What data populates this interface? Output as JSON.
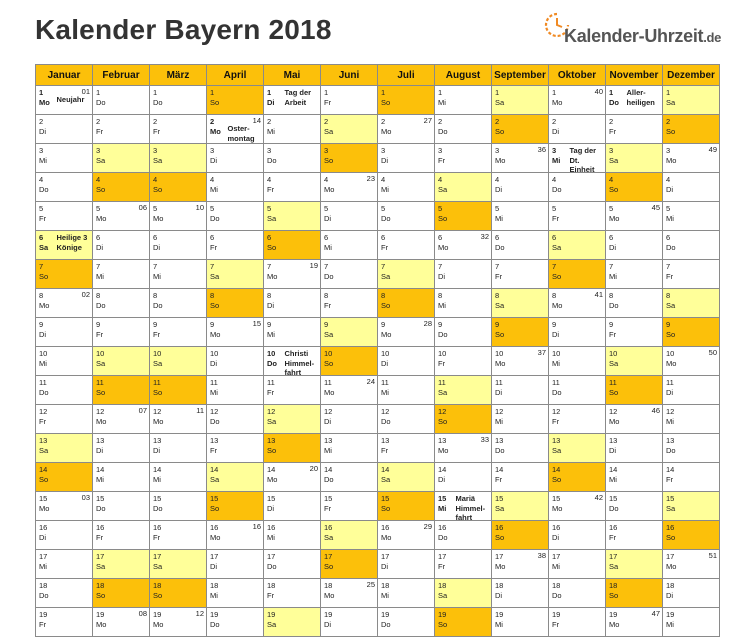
{
  "title": "Kalender Bayern 2018",
  "logo": {
    "text": "Kalender-Uhrzeit",
    "tld": ".de"
  },
  "colors": {
    "header": "#fcc00a",
    "saturday": "#ffff99",
    "sunday": "#fcc00a"
  },
  "months": [
    "Januar",
    "Februar",
    "März",
    "April",
    "Mai",
    "Juni",
    "Juli",
    "August",
    "September",
    "Oktober",
    "November",
    "Dezember"
  ],
  "rows": [
    [
      {
        "d": "1",
        "w": "Mo",
        "wk": "01",
        "ev": "Neujahr",
        "hol": true
      },
      {
        "d": "1",
        "w": "Do"
      },
      {
        "d": "1",
        "w": "Do"
      },
      {
        "d": "1",
        "w": "So",
        "t": "sun"
      },
      {
        "d": "1",
        "w": "Di",
        "ev": "Tag der Arbeit",
        "hol": true
      },
      {
        "d": "1",
        "w": "Fr"
      },
      {
        "d": "1",
        "w": "So",
        "t": "sun"
      },
      {
        "d": "1",
        "w": "Mi"
      },
      {
        "d": "1",
        "w": "Sa",
        "t": "sat"
      },
      {
        "d": "1",
        "w": "Mo",
        "wk": "40"
      },
      {
        "d": "1",
        "w": "Do",
        "ev": "Aller-heiligen",
        "hol": true
      },
      {
        "d": "1",
        "w": "Sa",
        "t": "sat"
      }
    ],
    [
      {
        "d": "2",
        "w": "Di"
      },
      {
        "d": "2",
        "w": "Fr"
      },
      {
        "d": "2",
        "w": "Fr"
      },
      {
        "d": "2",
        "w": "Mo",
        "wk": "14",
        "ev": "Oster-montag",
        "hol": true
      },
      {
        "d": "2",
        "w": "Mi"
      },
      {
        "d": "2",
        "w": "Sa",
        "t": "sat"
      },
      {
        "d": "2",
        "w": "Mo",
        "wk": "27"
      },
      {
        "d": "2",
        "w": "Do"
      },
      {
        "d": "2",
        "w": "So",
        "t": "sun"
      },
      {
        "d": "2",
        "w": "Di"
      },
      {
        "d": "2",
        "w": "Fr"
      },
      {
        "d": "2",
        "w": "So",
        "t": "sun"
      }
    ],
    [
      {
        "d": "3",
        "w": "Mi"
      },
      {
        "d": "3",
        "w": "Sa",
        "t": "sat"
      },
      {
        "d": "3",
        "w": "Sa",
        "t": "sat"
      },
      {
        "d": "3",
        "w": "Di"
      },
      {
        "d": "3",
        "w": "Do"
      },
      {
        "d": "3",
        "w": "So",
        "t": "sun"
      },
      {
        "d": "3",
        "w": "Di"
      },
      {
        "d": "3",
        "w": "Fr"
      },
      {
        "d": "3",
        "w": "Mo",
        "wk": "36"
      },
      {
        "d": "3",
        "w": "Mi",
        "ev": "Tag der Dt. Einheit",
        "hol": true
      },
      {
        "d": "3",
        "w": "Sa",
        "t": "sat"
      },
      {
        "d": "3",
        "w": "Mo",
        "wk": "49"
      }
    ],
    [
      {
        "d": "4",
        "w": "Do"
      },
      {
        "d": "4",
        "w": "So",
        "t": "sun"
      },
      {
        "d": "4",
        "w": "So",
        "t": "sun"
      },
      {
        "d": "4",
        "w": "Mi"
      },
      {
        "d": "4",
        "w": "Fr"
      },
      {
        "d": "4",
        "w": "Mo",
        "wk": "23"
      },
      {
        "d": "4",
        "w": "Mi"
      },
      {
        "d": "4",
        "w": "Sa",
        "t": "sat"
      },
      {
        "d": "4",
        "w": "Di"
      },
      {
        "d": "4",
        "w": "Do"
      },
      {
        "d": "4",
        "w": "So",
        "t": "sun"
      },
      {
        "d": "4",
        "w": "Di"
      }
    ],
    [
      {
        "d": "5",
        "w": "Fr"
      },
      {
        "d": "5",
        "w": "Mo",
        "wk": "06"
      },
      {
        "d": "5",
        "w": "Mo",
        "wk": "10"
      },
      {
        "d": "5",
        "w": "Do"
      },
      {
        "d": "5",
        "w": "Sa",
        "t": "sat"
      },
      {
        "d": "5",
        "w": "Di"
      },
      {
        "d": "5",
        "w": "Do"
      },
      {
        "d": "5",
        "w": "So",
        "t": "sun"
      },
      {
        "d": "5",
        "w": "Mi"
      },
      {
        "d": "5",
        "w": "Fr"
      },
      {
        "d": "5",
        "w": "Mo",
        "wk": "45"
      },
      {
        "d": "5",
        "w": "Mi"
      }
    ],
    [
      {
        "d": "6",
        "w": "Sa",
        "t": "sat",
        "ev": "Heilige 3 Könige",
        "hol": true
      },
      {
        "d": "6",
        "w": "Di"
      },
      {
        "d": "6",
        "w": "Di"
      },
      {
        "d": "6",
        "w": "Fr"
      },
      {
        "d": "6",
        "w": "So",
        "t": "sun"
      },
      {
        "d": "6",
        "w": "Mi"
      },
      {
        "d": "6",
        "w": "Fr"
      },
      {
        "d": "6",
        "w": "Mo",
        "wk": "32"
      },
      {
        "d": "6",
        "w": "Do"
      },
      {
        "d": "6",
        "w": "Sa",
        "t": "sat"
      },
      {
        "d": "6",
        "w": "Di"
      },
      {
        "d": "6",
        "w": "Do"
      }
    ],
    [
      {
        "d": "7",
        "w": "So",
        "t": "sun"
      },
      {
        "d": "7",
        "w": "Mi"
      },
      {
        "d": "7",
        "w": "Mi"
      },
      {
        "d": "7",
        "w": "Sa",
        "t": "sat"
      },
      {
        "d": "7",
        "w": "Mo",
        "wk": "19"
      },
      {
        "d": "7",
        "w": "Do"
      },
      {
        "d": "7",
        "w": "Sa",
        "t": "sat"
      },
      {
        "d": "7",
        "w": "Di"
      },
      {
        "d": "7",
        "w": "Fr"
      },
      {
        "d": "7",
        "w": "So",
        "t": "sun"
      },
      {
        "d": "7",
        "w": "Mi"
      },
      {
        "d": "7",
        "w": "Fr"
      }
    ],
    [
      {
        "d": "8",
        "w": "Mo",
        "wk": "02"
      },
      {
        "d": "8",
        "w": "Do"
      },
      {
        "d": "8",
        "w": "Do"
      },
      {
        "d": "8",
        "w": "So",
        "t": "sun"
      },
      {
        "d": "8",
        "w": "Di"
      },
      {
        "d": "8",
        "w": "Fr"
      },
      {
        "d": "8",
        "w": "So",
        "t": "sun"
      },
      {
        "d": "8",
        "w": "Mi"
      },
      {
        "d": "8",
        "w": "Sa",
        "t": "sat"
      },
      {
        "d": "8",
        "w": "Mo",
        "wk": "41"
      },
      {
        "d": "8",
        "w": "Do"
      },
      {
        "d": "8",
        "w": "Sa",
        "t": "sat"
      }
    ],
    [
      {
        "d": "9",
        "w": "Di"
      },
      {
        "d": "9",
        "w": "Fr"
      },
      {
        "d": "9",
        "w": "Fr"
      },
      {
        "d": "9",
        "w": "Mo",
        "wk": "15"
      },
      {
        "d": "9",
        "w": "Mi"
      },
      {
        "d": "9",
        "w": "Sa",
        "t": "sat"
      },
      {
        "d": "9",
        "w": "Mo",
        "wk": "28"
      },
      {
        "d": "9",
        "w": "Do"
      },
      {
        "d": "9",
        "w": "So",
        "t": "sun"
      },
      {
        "d": "9",
        "w": "Di"
      },
      {
        "d": "9",
        "w": "Fr"
      },
      {
        "d": "9",
        "w": "So",
        "t": "sun"
      }
    ],
    [
      {
        "d": "10",
        "w": "Mi"
      },
      {
        "d": "10",
        "w": "Sa",
        "t": "sat"
      },
      {
        "d": "10",
        "w": "Sa",
        "t": "sat"
      },
      {
        "d": "10",
        "w": "Di"
      },
      {
        "d": "10",
        "w": "Do",
        "ev": "Christi Himmel-fahrt",
        "hol": true
      },
      {
        "d": "10",
        "w": "So",
        "t": "sun"
      },
      {
        "d": "10",
        "w": "Di"
      },
      {
        "d": "10",
        "w": "Fr"
      },
      {
        "d": "10",
        "w": "Mo",
        "wk": "37"
      },
      {
        "d": "10",
        "w": "Mi"
      },
      {
        "d": "10",
        "w": "Sa",
        "t": "sat"
      },
      {
        "d": "10",
        "w": "Mo",
        "wk": "50"
      }
    ],
    [
      {
        "d": "11",
        "w": "Do"
      },
      {
        "d": "11",
        "w": "So",
        "t": "sun"
      },
      {
        "d": "11",
        "w": "So",
        "t": "sun"
      },
      {
        "d": "11",
        "w": "Mi"
      },
      {
        "d": "11",
        "w": "Fr"
      },
      {
        "d": "11",
        "w": "Mo",
        "wk": "24"
      },
      {
        "d": "11",
        "w": "Mi"
      },
      {
        "d": "11",
        "w": "Sa",
        "t": "sat"
      },
      {
        "d": "11",
        "w": "Di"
      },
      {
        "d": "11",
        "w": "Do"
      },
      {
        "d": "11",
        "w": "So",
        "t": "sun"
      },
      {
        "d": "11",
        "w": "Di"
      }
    ],
    [
      {
        "d": "12",
        "w": "Fr"
      },
      {
        "d": "12",
        "w": "Mo",
        "wk": "07"
      },
      {
        "d": "12",
        "w": "Mo",
        "wk": "11"
      },
      {
        "d": "12",
        "w": "Do"
      },
      {
        "d": "12",
        "w": "Sa",
        "t": "sat"
      },
      {
        "d": "12",
        "w": "Di"
      },
      {
        "d": "12",
        "w": "Do"
      },
      {
        "d": "12",
        "w": "So",
        "t": "sun"
      },
      {
        "d": "12",
        "w": "Mi"
      },
      {
        "d": "12",
        "w": "Fr"
      },
      {
        "d": "12",
        "w": "Mo",
        "wk": "46"
      },
      {
        "d": "12",
        "w": "Mi"
      }
    ],
    [
      {
        "d": "13",
        "w": "Sa",
        "t": "sat"
      },
      {
        "d": "13",
        "w": "Di"
      },
      {
        "d": "13",
        "w": "Di"
      },
      {
        "d": "13",
        "w": "Fr"
      },
      {
        "d": "13",
        "w": "So",
        "t": "sun"
      },
      {
        "d": "13",
        "w": "Mi"
      },
      {
        "d": "13",
        "w": "Fr"
      },
      {
        "d": "13",
        "w": "Mo",
        "wk": "33"
      },
      {
        "d": "13",
        "w": "Do"
      },
      {
        "d": "13",
        "w": "Sa",
        "t": "sat"
      },
      {
        "d": "13",
        "w": "Di"
      },
      {
        "d": "13",
        "w": "Do"
      }
    ],
    [
      {
        "d": "14",
        "w": "So",
        "t": "sun"
      },
      {
        "d": "14",
        "w": "Mi"
      },
      {
        "d": "14",
        "w": "Mi"
      },
      {
        "d": "14",
        "w": "Sa",
        "t": "sat"
      },
      {
        "d": "14",
        "w": "Mo",
        "wk": "20"
      },
      {
        "d": "14",
        "w": "Do"
      },
      {
        "d": "14",
        "w": "Sa",
        "t": "sat"
      },
      {
        "d": "14",
        "w": "Di"
      },
      {
        "d": "14",
        "w": "Fr"
      },
      {
        "d": "14",
        "w": "So",
        "t": "sun"
      },
      {
        "d": "14",
        "w": "Mi"
      },
      {
        "d": "14",
        "w": "Fr"
      }
    ],
    [
      {
        "d": "15",
        "w": "Mo",
        "wk": "03"
      },
      {
        "d": "15",
        "w": "Do"
      },
      {
        "d": "15",
        "w": "Do"
      },
      {
        "d": "15",
        "w": "So",
        "t": "sun"
      },
      {
        "d": "15",
        "w": "Di"
      },
      {
        "d": "15",
        "w": "Fr"
      },
      {
        "d": "15",
        "w": "So",
        "t": "sun"
      },
      {
        "d": "15",
        "w": "Mi",
        "ev": "Mariä Himmel-fahrt",
        "hol": true
      },
      {
        "d": "15",
        "w": "Sa",
        "t": "sat"
      },
      {
        "d": "15",
        "w": "Mo",
        "wk": "42"
      },
      {
        "d": "15",
        "w": "Do"
      },
      {
        "d": "15",
        "w": "Sa",
        "t": "sat"
      }
    ],
    [
      {
        "d": "16",
        "w": "Di"
      },
      {
        "d": "16",
        "w": "Fr"
      },
      {
        "d": "16",
        "w": "Fr"
      },
      {
        "d": "16",
        "w": "Mo",
        "wk": "16"
      },
      {
        "d": "16",
        "w": "Mi"
      },
      {
        "d": "16",
        "w": "Sa",
        "t": "sat"
      },
      {
        "d": "16",
        "w": "Mo",
        "wk": "29"
      },
      {
        "d": "16",
        "w": "Do"
      },
      {
        "d": "16",
        "w": "So",
        "t": "sun"
      },
      {
        "d": "16",
        "w": "Di"
      },
      {
        "d": "16",
        "w": "Fr"
      },
      {
        "d": "16",
        "w": "So",
        "t": "sun"
      }
    ],
    [
      {
        "d": "17",
        "w": "Mi"
      },
      {
        "d": "17",
        "w": "Sa",
        "t": "sat"
      },
      {
        "d": "17",
        "w": "Sa",
        "t": "sat"
      },
      {
        "d": "17",
        "w": "Di"
      },
      {
        "d": "17",
        "w": "Do"
      },
      {
        "d": "17",
        "w": "So",
        "t": "sun"
      },
      {
        "d": "17",
        "w": "Di"
      },
      {
        "d": "17",
        "w": "Fr"
      },
      {
        "d": "17",
        "w": "Mo",
        "wk": "38"
      },
      {
        "d": "17",
        "w": "Mi"
      },
      {
        "d": "17",
        "w": "Sa",
        "t": "sat"
      },
      {
        "d": "17",
        "w": "Mo",
        "wk": "51"
      }
    ],
    [
      {
        "d": "18",
        "w": "Do"
      },
      {
        "d": "18",
        "w": "So",
        "t": "sun"
      },
      {
        "d": "18",
        "w": "So",
        "t": "sun"
      },
      {
        "d": "18",
        "w": "Mi"
      },
      {
        "d": "18",
        "w": "Fr"
      },
      {
        "d": "18",
        "w": "Mo",
        "wk": "25"
      },
      {
        "d": "18",
        "w": "Mi"
      },
      {
        "d": "18",
        "w": "Sa",
        "t": "sat"
      },
      {
        "d": "18",
        "w": "Di"
      },
      {
        "d": "18",
        "w": "Do"
      },
      {
        "d": "18",
        "w": "So",
        "t": "sun"
      },
      {
        "d": "18",
        "w": "Di"
      }
    ],
    [
      {
        "d": "19",
        "w": "Fr"
      },
      {
        "d": "19",
        "w": "Mo",
        "wk": "08"
      },
      {
        "d": "19",
        "w": "Mo",
        "wk": "12"
      },
      {
        "d": "19",
        "w": "Do"
      },
      {
        "d": "19",
        "w": "Sa",
        "t": "sat"
      },
      {
        "d": "19",
        "w": "Di"
      },
      {
        "d": "19",
        "w": "Do"
      },
      {
        "d": "19",
        "w": "So",
        "t": "sun"
      },
      {
        "d": "19",
        "w": "Mi"
      },
      {
        "d": "19",
        "w": "Fr"
      },
      {
        "d": "19",
        "w": "Mo",
        "wk": "47"
      },
      {
        "d": "19",
        "w": "Mi"
      }
    ]
  ]
}
